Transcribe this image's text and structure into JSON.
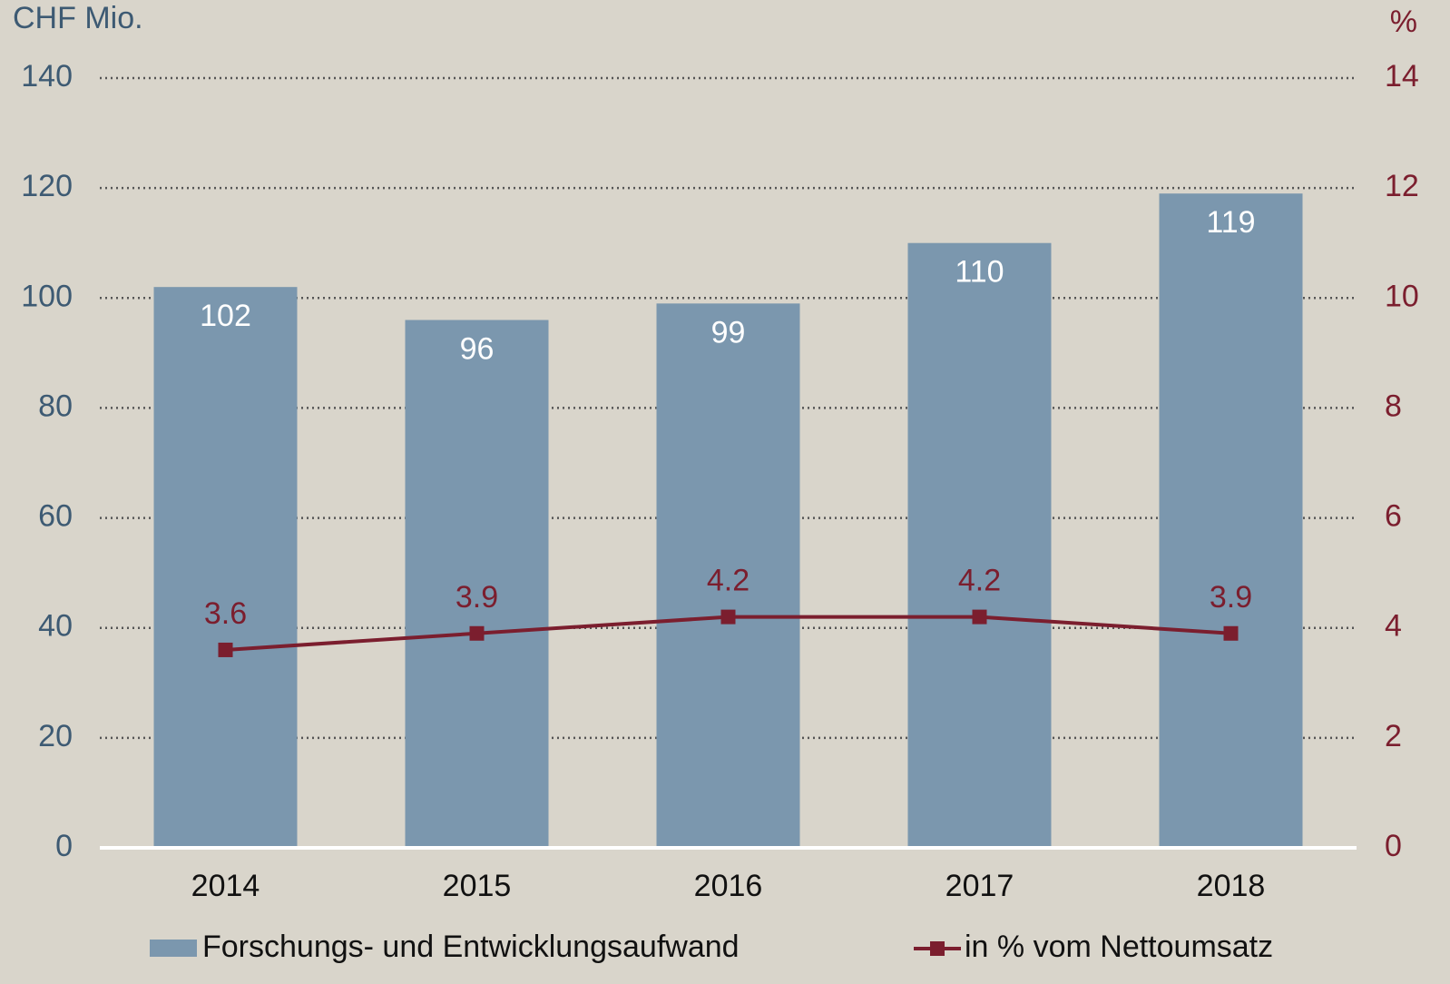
{
  "chart_data": {
    "type": "bar_line",
    "y_label": "CHF Mio.",
    "y2_label": "%",
    "categories": [
      "2014",
      "2015",
      "2016",
      "2017",
      "2018"
    ],
    "series": [
      {
        "name": "Forschungs- und Entwicklungsaufwand",
        "type": "bar",
        "color": "#7b97ae",
        "values": [
          102,
          96,
          99,
          110,
          119
        ]
      },
      {
        "name": "in % vom Nettoumsatz",
        "type": "line",
        "axis": "y2",
        "color": "#7b1e2e",
        "values": [
          3.6,
          3.9,
          4.2,
          4.2,
          3.9
        ]
      }
    ],
    "ylim": [
      0,
      140
    ],
    "yticks": [
      0,
      20,
      40,
      60,
      80,
      100,
      120,
      140
    ],
    "y2lim": [
      0,
      14
    ],
    "y2ticks": [
      0,
      2,
      4,
      6,
      8,
      10,
      12,
      14
    ],
    "grid": true,
    "legend": "bottom"
  }
}
